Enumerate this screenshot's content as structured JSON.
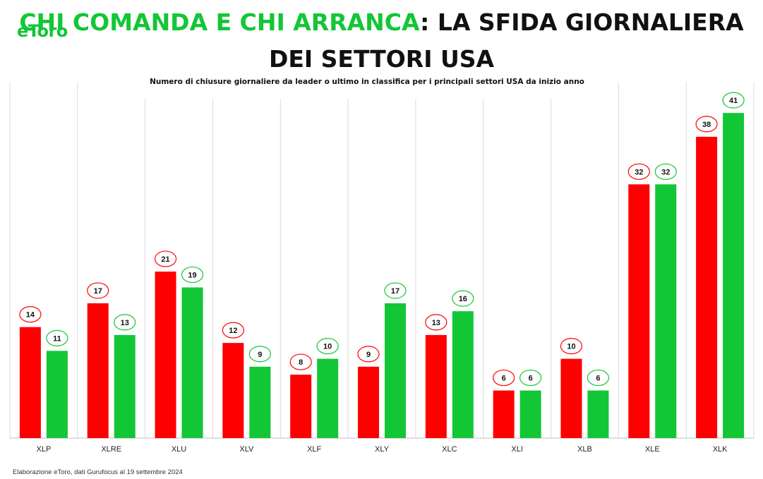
{
  "logo_text": "eToro",
  "title": {
    "highlight": "Chi comanda e chi arranca",
    "rest": ": la sfida giornaliera dei settori USA"
  },
  "subtitle": "Numero di chiusure giornaliere da leader o ultimo in classifica per i principali settori USA da inizio anno",
  "source": "Elaborazione eToro, dati Gurufocus al 19 settembre 2024",
  "colors": {
    "red": "#ff0000",
    "green": "#13c636",
    "grid": "#d9d9d9"
  },
  "chart_data": {
    "type": "bar",
    "categories": [
      "XLP",
      "XLRE",
      "XLU",
      "XLV",
      "XLF",
      "XLY",
      "XLC",
      "XLI",
      "XLB",
      "XLE",
      "XLK"
    ],
    "series": [
      {
        "color": "#ff0000",
        "values": [
          14,
          17,
          21,
          12,
          8,
          9,
          13,
          6,
          10,
          32,
          38
        ]
      },
      {
        "color": "#13c636",
        "values": [
          11,
          13,
          19,
          9,
          10,
          17,
          16,
          6,
          6,
          32,
          41
        ]
      }
    ],
    "ylim": [
      0,
      45
    ],
    "grid": "vertical-separators",
    "data_labels": "circled"
  }
}
